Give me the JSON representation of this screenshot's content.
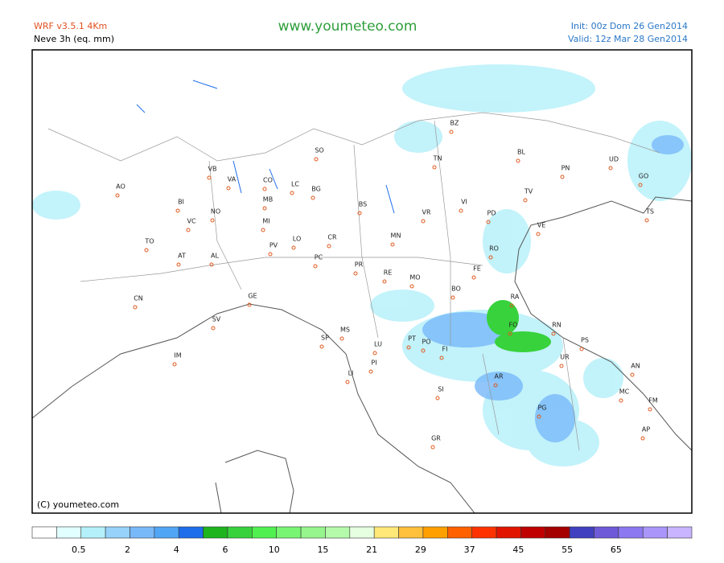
{
  "header": {
    "model": "WRF v3.5.1 4Km",
    "variable": "Neve 3h (eq. mm)",
    "site": "www.youmeteo.com",
    "init": "Init: 00z Dom 26 Gen2014",
    "valid": "Valid: 12z Mar  28 Gen2014"
  },
  "copyright": "(C) youmeteo.com",
  "cities": [
    "BZ",
    "SO",
    "TN",
    "BL",
    "PN",
    "UD",
    "GO",
    "TS",
    "AO",
    "VB",
    "VA",
    "CO",
    "LC",
    "BG",
    "BI",
    "NO",
    "MB",
    "BS",
    "VR",
    "VI",
    "TV",
    "VC",
    "MI",
    "PD",
    "VE",
    "TO",
    "PV",
    "LO",
    "CR",
    "MN",
    "RO",
    "AT",
    "AL",
    "PC",
    "FE",
    "PR",
    "RE",
    "MO",
    "CN",
    "GE",
    "BO",
    "RA",
    "FO",
    "RN",
    "SV",
    "MS",
    "SP",
    "PS",
    "LU",
    "PT",
    "PO",
    "FI",
    "UR",
    "IM",
    "PI",
    "AN",
    "AR",
    "LI",
    "MC",
    "SI",
    "FM",
    "PG",
    "AP",
    "GR"
  ],
  "colorbar": {
    "colors": [
      "#ffffff",
      "#e1ffff",
      "#b4f0fa",
      "#96d2fa",
      "#78b9fa",
      "#50a5f5",
      "#1e6eeb",
      "#1eb41e",
      "#37d23c",
      "#50f050",
      "#78f573",
      "#96f58c",
      "#b4faaa",
      "#e6ffe1",
      "#ffe878",
      "#ffc03c",
      "#ffa000",
      "#ff6000",
      "#ff3200",
      "#e11400",
      "#c00000",
      "#a50000",
      "#4040c0",
      "#6e5ad8",
      "#8c78f0",
      "#aa96fa",
      "#c8b4ff"
    ],
    "labels": [
      0.5,
      2,
      4,
      6,
      10,
      15,
      21,
      29,
      37,
      45,
      55,
      65
    ]
  }
}
